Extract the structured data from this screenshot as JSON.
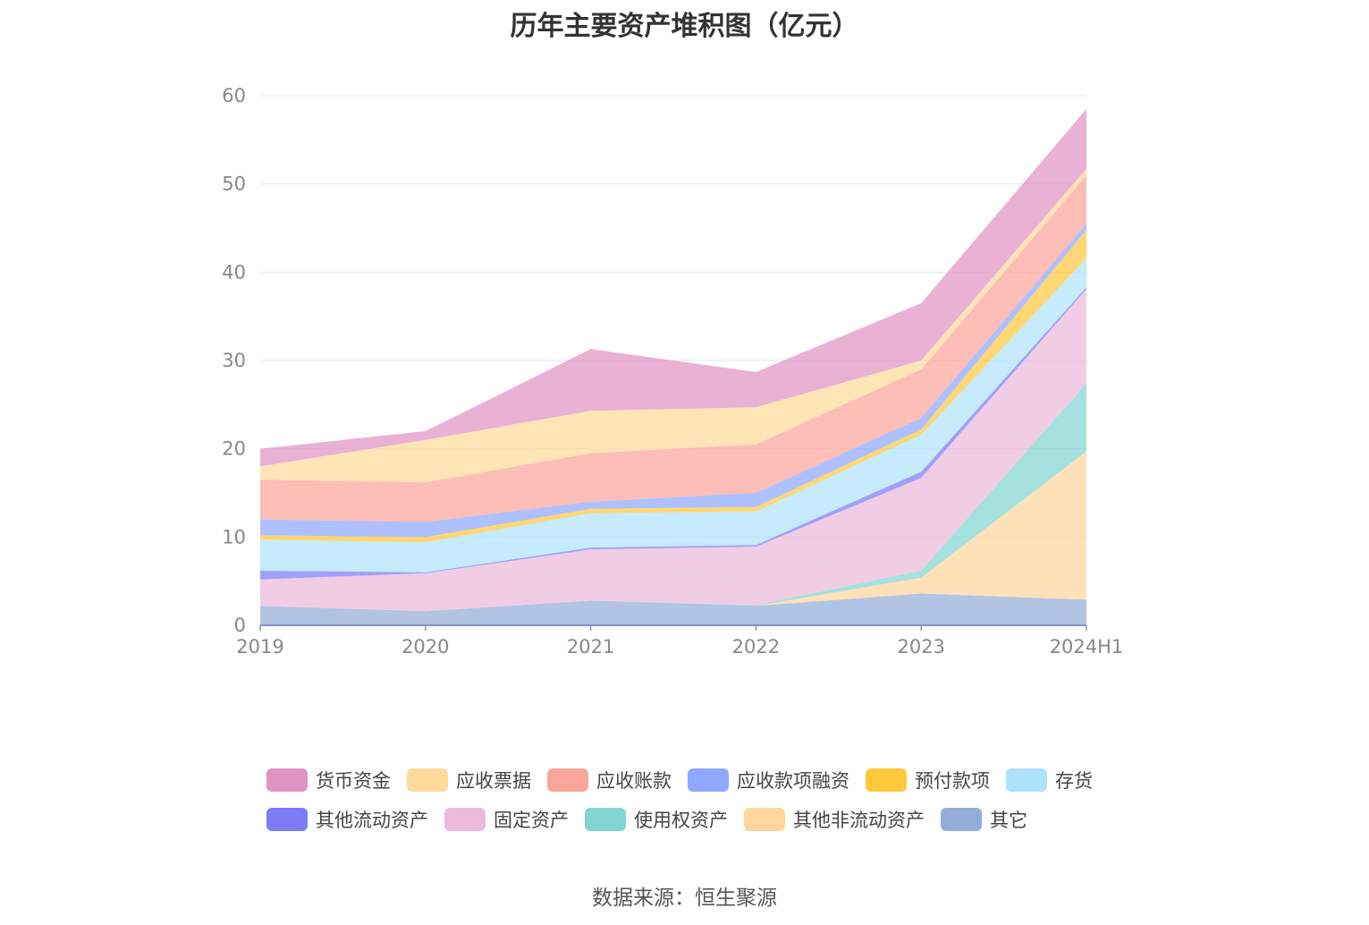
{
  "chart_data": {
    "type": "area",
    "title": "历年主要资产堆积图（亿元）",
    "xlabel": "",
    "ylabel": "",
    "categories": [
      "2019",
      "2020",
      "2021",
      "2022",
      "2023",
      "2024H1"
    ],
    "ylim": [
      0,
      60
    ],
    "yticks": [
      0,
      10,
      20,
      30,
      40,
      50,
      60
    ],
    "grid": true,
    "legend": "bottom",
    "stacking_order": "bottom-to-top: 其它 first, 货币资金 last",
    "series": [
      {
        "name": "货币资金",
        "color": "#e094c4",
        "values": [
          2.0,
          1.0,
          7.0,
          4.0,
          6.5,
          6.8
        ]
      },
      {
        "name": "应收票据",
        "color": "#ffd99a",
        "values": [
          1.5,
          4.8,
          4.8,
          4.2,
          1.0,
          0.7
        ]
      },
      {
        "name": "应收账款",
        "color": "#fba59a",
        "values": [
          4.5,
          4.5,
          5.5,
          5.5,
          5.5,
          5.5
        ]
      },
      {
        "name": "应收款项融资",
        "color": "#8fa8ff",
        "values": [
          1.8,
          1.7,
          0.8,
          1.6,
          1.3,
          0.7
        ]
      },
      {
        "name": "预付款项",
        "color": "#ffc83d",
        "values": [
          0.5,
          0.6,
          0.5,
          0.5,
          0.6,
          3.2
        ]
      },
      {
        "name": "存货",
        "color": "#aee3fb",
        "values": [
          3.5,
          3.4,
          3.9,
          3.8,
          4.2,
          3.3
        ]
      },
      {
        "name": "其他流动资产",
        "color": "#7b7cf6",
        "values": [
          1.0,
          0.1,
          0.2,
          0.2,
          0.7,
          0.2
        ]
      },
      {
        "name": "固定资产",
        "color": "#ebbadb",
        "values": [
          3.0,
          4.3,
          5.8,
          6.6,
          10.5,
          10.7
        ]
      },
      {
        "name": "使用权资产",
        "color": "#82d6d1",
        "values": [
          0.0,
          0.0,
          0.0,
          0.1,
          0.8,
          7.7
        ]
      },
      {
        "name": "其他非流动资产",
        "color": "#ffd59e",
        "values": [
          0.0,
          0.0,
          0.0,
          0.0,
          1.8,
          16.8
        ]
      },
      {
        "name": "其它",
        "color": "#93add8",
        "values": [
          2.2,
          1.6,
          2.8,
          2.2,
          3.6,
          2.9
        ]
      }
    ]
  },
  "source": "数据来源：恒生聚源"
}
